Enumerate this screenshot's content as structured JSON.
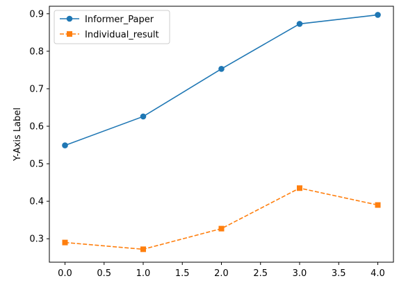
{
  "chart_data": {
    "type": "line",
    "x": [
      0.0,
      1.0,
      2.0,
      3.0,
      4.0
    ],
    "series": [
      {
        "name": "Informer_Paper",
        "values": [
          0.549,
          0.626,
          0.753,
          0.873,
          0.897
        ],
        "color": "#1f77b4",
        "line_style": "solid",
        "marker": "circle"
      },
      {
        "name": "Individual_result",
        "values": [
          0.29,
          0.272,
          0.327,
          0.435,
          0.39
        ],
        "color": "#ff7f0e",
        "line_style": "dashed",
        "marker": "square"
      }
    ],
    "title": "",
    "xlabel": "",
    "ylabel": "Y-Axis Label",
    "xlim": [
      -0.2,
      4.2
    ],
    "ylim": [
      0.2375,
      0.92
    ],
    "x_ticks": [
      0.0,
      0.5,
      1.0,
      1.5,
      2.0,
      2.5,
      3.0,
      3.5,
      4.0
    ],
    "x_tick_labels": [
      "0.0",
      "0.5",
      "1.0",
      "1.5",
      "2.0",
      "2.5",
      "3.0",
      "3.5",
      "4.0"
    ],
    "y_ticks": [
      0.3,
      0.4,
      0.5,
      0.6,
      0.7,
      0.8,
      0.9
    ],
    "y_tick_labels": [
      "0.3",
      "0.4",
      "0.5",
      "0.6",
      "0.7",
      "0.8",
      "0.9"
    ],
    "grid": false,
    "legend_position": "upper-left"
  }
}
